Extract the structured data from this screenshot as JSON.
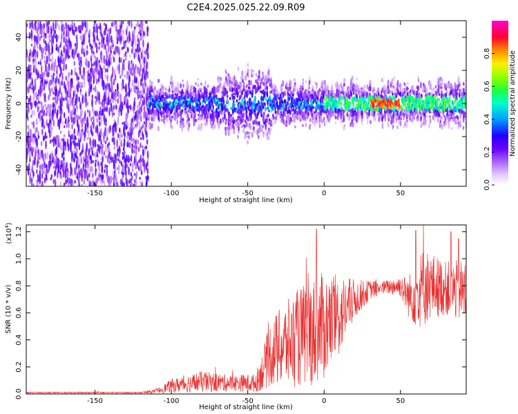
{
  "title": "C2E4.2025.025.22.09.R09",
  "chart_data": [
    {
      "type": "heatmap",
      "xlabel": "Height of straight line (km)",
      "ylabel": "Frequency (Hz)",
      "xlim": [
        -195,
        93
      ],
      "ylim": [
        -50,
        50
      ],
      "xticks": [
        -150,
        -100,
        -50,
        0,
        50
      ],
      "yticks": [
        -40,
        -20,
        0,
        20,
        40
      ],
      "colorbar": {
        "label": "Normalized spectral amplitude",
        "range": [
          0,
          1
        ],
        "ticks": [
          "0.0",
          "0.2",
          "0.4",
          "0.6",
          "0.8"
        ],
        "colors": [
          "#ffffff",
          "#d9b3ff",
          "#8a2be2",
          "#3300ff",
          "#00c0ff",
          "#00ffcc",
          "#33ff00",
          "#ccff00",
          "#ffcc00",
          "#ff6600",
          "#ff0033",
          "#ff00cc"
        ]
      },
      "regions": [
        {
          "x": [
            -195,
            -115
          ],
          "description": "broadband noise across all frequencies",
          "amplitude": 0.25
        },
        {
          "x": [
            -115,
            93
          ],
          "description": "band near 0 Hz, width about ±15 Hz",
          "amplitude": 0.35
        },
        {
          "x": [
            30,
            50
          ],
          "center_hz": 0,
          "amplitude": 0.95
        }
      ]
    },
    {
      "type": "line",
      "xlabel": "Height of straight line (km)",
      "ylabel": "SNR (10 * v/v)",
      "y_multiplier": "(x10^4)",
      "xlim": [
        -195,
        93
      ],
      "ylim": [
        0,
        1.25
      ],
      "xticks": [
        -150,
        -100,
        -50,
        0,
        50
      ],
      "yticks": [
        "0.0",
        "0.2",
        "0.4",
        "0.6",
        "0.8",
        "1.0",
        "1.2"
      ],
      "color": "#e83030",
      "envelope": {
        "x": [
          -195,
          -120,
          -110,
          -100,
          -80,
          -60,
          -45,
          -40,
          -35,
          -20,
          -10,
          0,
          10,
          20,
          30,
          40,
          50,
          55,
          60,
          65,
          70,
          80,
          93
        ],
        "y_mean": [
          0.01,
          0.01,
          0.02,
          0.06,
          0.09,
          0.08,
          0.08,
          0.18,
          0.3,
          0.4,
          0.45,
          0.5,
          0.58,
          0.7,
          0.77,
          0.79,
          0.8,
          0.72,
          0.74,
          0.79,
          0.8,
          0.78,
          0.75
        ],
        "y_amp": [
          0.005,
          0.005,
          0.015,
          0.05,
          0.08,
          0.06,
          0.07,
          0.15,
          0.25,
          0.35,
          0.4,
          0.4,
          0.3,
          0.15,
          0.07,
          0.05,
          0.08,
          0.15,
          0.25,
          0.3,
          0.25,
          0.2,
          0.25
        ]
      },
      "peaks": [
        {
          "x": -5,
          "y": 1.22
        },
        {
          "x": 60,
          "y": 1.21
        },
        {
          "x": 65,
          "y": 1.25
        },
        {
          "x": 83,
          "y": 1.2
        },
        {
          "x": 88,
          "y": 1.15
        }
      ]
    }
  ]
}
